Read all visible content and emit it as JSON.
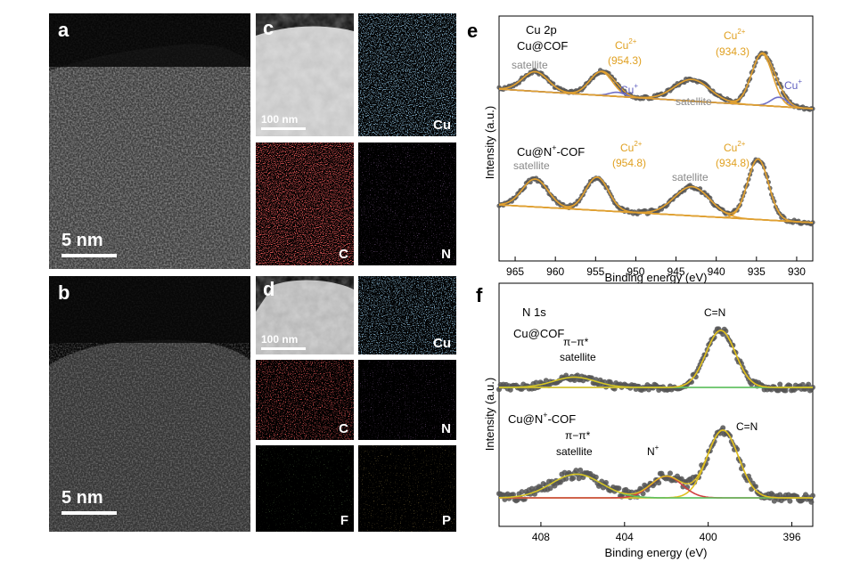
{
  "panels": {
    "a": {
      "label": "a",
      "scalebar": "5 nm"
    },
    "b": {
      "label": "b",
      "scalebar": "5 nm"
    },
    "c": {
      "label": "c",
      "scalebar": "100 nm",
      "maps": [
        "Cu",
        "C",
        "N"
      ]
    },
    "d": {
      "label": "d",
      "scalebar": "100 nm",
      "maps": [
        "Cu",
        "C",
        "N",
        "F",
        "P"
      ]
    }
  },
  "colors": {
    "Cu": "#4a90c8",
    "C": "#d01818",
    "N": "#7a3aa0",
    "F": "#4aa030",
    "P": "#c88a20",
    "data_point": "#555555",
    "fit_envelope": "#2a2a2a",
    "cu2_fit": "#e0a030",
    "cu1_fit": "#7070c8",
    "baseline": "#888888",
    "cn_fit": "#e0c020",
    "nplus_fit": "#d04040",
    "pipi_fit": "#60c060",
    "nbaseline": "#80d080",
    "cu2_text": "#e0a020",
    "cu1_text": "#6060c0",
    "sat_text": "#888888"
  },
  "chart_data": [
    {
      "panel": "e",
      "type": "line",
      "label": "e",
      "title": "Cu 2p",
      "xlabel": "Binding energy (eV)",
      "ylabel": "Intensity (a.u.)",
      "xlim": [
        967,
        928
      ],
      "xticks": [
        965,
        960,
        955,
        950,
        945,
        940,
        935,
        930
      ],
      "series": [
        {
          "name": "Cu@COF",
          "peaks": [
            {
              "center": 934.3,
              "height": 1.0,
              "width": 1.3,
              "species": "Cu2+"
            },
            {
              "center": 932.2,
              "height": 0.18,
              "width": 1.0,
              "species": "Cu+"
            },
            {
              "center": 954.3,
              "height": 0.46,
              "width": 1.4,
              "species": "Cu2+"
            },
            {
              "center": 952.3,
              "height": 0.08,
              "width": 1.0,
              "species": "Cu+"
            },
            {
              "center": 943.0,
              "height": 0.42,
              "width": 2.2,
              "species": "satellite"
            },
            {
              "center": 962.5,
              "height": 0.38,
              "width": 1.6,
              "species": "satellite"
            }
          ]
        },
        {
          "name": "Cu@N+-COF",
          "peaks": [
            {
              "center": 934.8,
              "height": 1.0,
              "width": 1.3,
              "species": "Cu2+"
            },
            {
              "center": 954.8,
              "height": 0.55,
              "width": 1.4,
              "species": "Cu2+"
            },
            {
              "center": 943.0,
              "height": 0.48,
              "width": 2.2,
              "species": "satellite"
            },
            {
              "center": 962.5,
              "height": 0.46,
              "width": 1.6,
              "species": "satellite"
            }
          ]
        }
      ],
      "annotations": [
        {
          "text": "Cu 2p"
        },
        {
          "text": "Cu@COF"
        },
        {
          "text": "Cu2+ (954.3)"
        },
        {
          "text": "Cu2+ (934.3)"
        },
        {
          "text": "satellite"
        },
        {
          "text": "Cu+"
        },
        {
          "text": "Cu@N+-COF"
        },
        {
          "text": "Cu2+ (954.8)"
        },
        {
          "text": "Cu2+ (934.8)"
        }
      ]
    },
    {
      "panel": "f",
      "type": "line",
      "label": "f",
      "title": "N 1s",
      "xlabel": "Binding energy (eV)",
      "ylabel": "Intensity (a.u.)",
      "xlim": [
        410,
        395
      ],
      "xticks": [
        408,
        404,
        400,
        396
      ],
      "series": [
        {
          "name": "Cu@COF",
          "peaks": [
            {
              "center": 399.4,
              "height": 1.0,
              "width": 0.7,
              "species": "C=N"
            },
            {
              "center": 406.4,
              "height": 0.18,
              "width": 1.0,
              "species": "π-π* satellite"
            }
          ]
        },
        {
          "name": "Cu@N+-COF",
          "peaks": [
            {
              "center": 399.3,
              "height": 1.0,
              "width": 0.75,
              "species": "C=N"
            },
            {
              "center": 402.0,
              "height": 0.32,
              "width": 0.75,
              "species": "N+"
            },
            {
              "center": 406.3,
              "height": 0.35,
              "width": 1.2,
              "species": "π-π* satellite"
            }
          ]
        }
      ]
    }
  ],
  "text": {
    "e_label": "e",
    "f_label": "f",
    "e_title": "Cu 2p",
    "e_s1": "Cu@COF",
    "e_s2_pre": "Cu@N",
    "e_s2_sup": "+",
    "e_s2_post": "-COF",
    "cu2": "Cu",
    "cu2_sup": "2+",
    "cu1": "Cu",
    "cu1_sup": "+",
    "v9543": "(954.3)",
    "v9343": "(934.3)",
    "v9548": "(954.8)",
    "v9348": "(934.8)",
    "satellite": "satellite",
    "xlabel": "Binding energy (eV)",
    "ylabel": "Intensity (a.u.)",
    "f_title": "N 1s",
    "f_s1": "Cu@COF",
    "f_s2_pre": "Cu@N",
    "f_s2_sup": "+",
    "f_s2_post": "-COF",
    "pipi": "π−π*",
    "cn": "C=N",
    "nplus": "N",
    "nplus_sup": "+"
  }
}
